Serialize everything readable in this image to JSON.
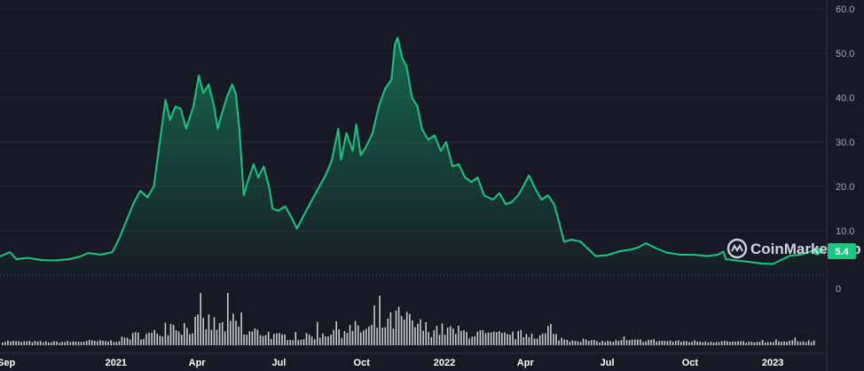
{
  "chart_data": {
    "type": "area",
    "title": "",
    "xlabel": "",
    "ylabel": "",
    "x_range": [
      "2020-08-25",
      "2023-02-28"
    ],
    "ylim": [
      0,
      60
    ],
    "y_ticks": [
      "60.0",
      "50.0",
      "40.0",
      "30.0",
      "20.0",
      "10.0"
    ],
    "volume_tick": "0",
    "x_ticks": [
      {
        "label": "Sep",
        "date": "2020-09-01"
      },
      {
        "label": "2021",
        "date": "2021-01-01"
      },
      {
        "label": "Apr",
        "date": "2021-04-01"
      },
      {
        "label": "Jul",
        "date": "2021-07-01"
      },
      {
        "label": "Oct",
        "date": "2021-10-01"
      },
      {
        "label": "2022",
        "date": "2022-01-01"
      },
      {
        "label": "Apr",
        "date": "2022-04-01"
      },
      {
        "label": "Jul",
        "date": "2022-07-01"
      },
      {
        "label": "Oct",
        "date": "2022-10-01"
      },
      {
        "label": "2023",
        "date": "2023-01-01"
      }
    ],
    "series": [
      {
        "values": [
          [
            "2020-08-25",
            4.2
          ],
          [
            "2020-09-05",
            5.2
          ],
          [
            "2020-09-12",
            3.6
          ],
          [
            "2020-09-25",
            3.9
          ],
          [
            "2020-10-10",
            3.4
          ],
          [
            "2020-10-25",
            3.3
          ],
          [
            "2020-11-10",
            3.6
          ],
          [
            "2020-11-22",
            4.2
          ],
          [
            "2020-12-01",
            5.0
          ],
          [
            "2020-12-15",
            4.6
          ],
          [
            "2020-12-28",
            5.2
          ],
          [
            "2021-01-05",
            8.5
          ],
          [
            "2021-01-10",
            11.0
          ],
          [
            "2021-01-20",
            16.0
          ],
          [
            "2021-01-28",
            19.0
          ],
          [
            "2021-02-05",
            17.5
          ],
          [
            "2021-02-12",
            20.0
          ],
          [
            "2021-02-20",
            32.0
          ],
          [
            "2021-02-25",
            39.5
          ],
          [
            "2021-03-02",
            35.0
          ],
          [
            "2021-03-08",
            38.0
          ],
          [
            "2021-03-14",
            37.5
          ],
          [
            "2021-03-20",
            33.0
          ],
          [
            "2021-03-28",
            38.0
          ],
          [
            "2021-04-03",
            45.0
          ],
          [
            "2021-04-08",
            41.0
          ],
          [
            "2021-04-14",
            43.0
          ],
          [
            "2021-04-20",
            38.0
          ],
          [
            "2021-04-24",
            33.0
          ],
          [
            "2021-04-28",
            36.0
          ],
          [
            "2021-05-04",
            40.0
          ],
          [
            "2021-05-10",
            43.0
          ],
          [
            "2021-05-14",
            41.0
          ],
          [
            "2021-05-18",
            33.0
          ],
          [
            "2021-05-23",
            18.0
          ],
          [
            "2021-05-28",
            21.5
          ],
          [
            "2021-06-03",
            25.0
          ],
          [
            "2021-06-08",
            22.0
          ],
          [
            "2021-06-14",
            24.5
          ],
          [
            "2021-06-20",
            20.0
          ],
          [
            "2021-06-24",
            15.0
          ],
          [
            "2021-06-30",
            14.5
          ],
          [
            "2021-07-08",
            15.5
          ],
          [
            "2021-07-15",
            13.0
          ],
          [
            "2021-07-21",
            10.5
          ],
          [
            "2021-07-30",
            14.0
          ],
          [
            "2021-08-07",
            17.0
          ],
          [
            "2021-08-15",
            20.0
          ],
          [
            "2021-08-22",
            22.5
          ],
          [
            "2021-08-29",
            26.0
          ],
          [
            "2021-09-05",
            33.0
          ],
          [
            "2021-09-08",
            26.0
          ],
          [
            "2021-09-14",
            32.0
          ],
          [
            "2021-09-21",
            28.0
          ],
          [
            "2021-09-25",
            34.0
          ],
          [
            "2021-09-30",
            27.0
          ],
          [
            "2021-10-06",
            29.0
          ],
          [
            "2021-10-13",
            32.0
          ],
          [
            "2021-10-20",
            38.0
          ],
          [
            "2021-10-27",
            42.0
          ],
          [
            "2021-11-03",
            44.0
          ],
          [
            "2021-11-07",
            52.0
          ],
          [
            "2021-11-10",
            53.5
          ],
          [
            "2021-11-15",
            49.0
          ],
          [
            "2021-11-20",
            47.0
          ],
          [
            "2021-11-26",
            40.0
          ],
          [
            "2021-12-02",
            38.0
          ],
          [
            "2021-12-07",
            33.0
          ],
          [
            "2021-12-14",
            30.5
          ],
          [
            "2021-12-21",
            31.5
          ],
          [
            "2021-12-28",
            28.0
          ],
          [
            "2022-01-03",
            30.0
          ],
          [
            "2022-01-10",
            24.5
          ],
          [
            "2022-01-17",
            25.0
          ],
          [
            "2022-01-24",
            22.0
          ],
          [
            "2022-01-31",
            21.0
          ],
          [
            "2022-02-07",
            22.0
          ],
          [
            "2022-02-14",
            18.0
          ],
          [
            "2022-02-24",
            17.0
          ],
          [
            "2022-03-03",
            18.5
          ],
          [
            "2022-03-10",
            16.0
          ],
          [
            "2022-03-17",
            16.5
          ],
          [
            "2022-03-24",
            18.0
          ],
          [
            "2022-03-31",
            20.5
          ],
          [
            "2022-04-05",
            22.5
          ],
          [
            "2022-04-12",
            19.5
          ],
          [
            "2022-04-19",
            17.0
          ],
          [
            "2022-04-26",
            18.0
          ],
          [
            "2022-05-03",
            16.0
          ],
          [
            "2022-05-09",
            11.5
          ],
          [
            "2022-05-14",
            7.5
          ],
          [
            "2022-05-22",
            8.0
          ],
          [
            "2022-06-01",
            7.6
          ],
          [
            "2022-06-12",
            5.5
          ],
          [
            "2022-06-18",
            4.3
          ],
          [
            "2022-07-01",
            4.5
          ],
          [
            "2022-07-15",
            5.4
          ],
          [
            "2022-07-28",
            5.8
          ],
          [
            "2022-08-05",
            6.3
          ],
          [
            "2022-08-13",
            7.2
          ],
          [
            "2022-08-25",
            6.0
          ],
          [
            "2022-09-05",
            5.1
          ],
          [
            "2022-09-20",
            4.6
          ],
          [
            "2022-10-05",
            4.6
          ],
          [
            "2022-10-20",
            4.3
          ],
          [
            "2022-11-01",
            4.6
          ],
          [
            "2022-11-07",
            5.3
          ],
          [
            "2022-11-10",
            3.6
          ],
          [
            "2022-11-22",
            3.3
          ],
          [
            "2022-12-05",
            3.0
          ],
          [
            "2022-12-20",
            2.6
          ],
          [
            "2023-01-01",
            2.5
          ],
          [
            "2023-01-10",
            3.4
          ],
          [
            "2023-01-20",
            4.4
          ],
          [
            "2023-02-01",
            4.6
          ],
          [
            "2023-02-10",
            5.2
          ],
          [
            "2023-02-18",
            5.8
          ],
          [
            "2023-02-28",
            5.4
          ]
        ]
      }
    ],
    "volume": [],
    "last_price": "5.4",
    "colors": {
      "background": "#171924",
      "line": "#16c784",
      "badge": "#16c784",
      "volume": "#e9ebf0",
      "grid": "#252836"
    },
    "grid": true
  },
  "watermark": {
    "brand": "CoinMarketCap",
    "icon": "coinmarketcap-logo-icon"
  }
}
